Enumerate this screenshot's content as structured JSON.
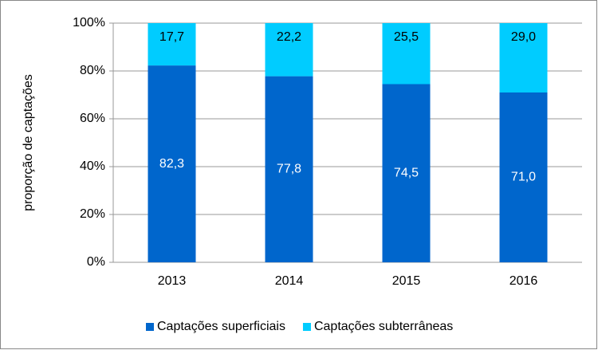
{
  "chart_data": {
    "type": "stacked_bar",
    "y_label": "proporção de captações",
    "categories": [
      "2013",
      "2014",
      "2015",
      "2016"
    ],
    "series": [
      {
        "name": "Captações superficiais",
        "color": "#0066cc",
        "values": [
          82.3,
          77.8,
          74.5,
          71.0
        ],
        "value_labels": [
          "82,3",
          "77,8",
          "74,5",
          "71,0"
        ],
        "label_color": "#ffffff"
      },
      {
        "name": "Captações subterrâneas",
        "color": "#00ccff",
        "values": [
          17.7,
          22.2,
          25.5,
          29.0
        ],
        "value_labels": [
          "17,7",
          "22,2",
          "25,5",
          "29,0"
        ],
        "label_color": "#000000"
      }
    ],
    "ylim": [
      0,
      100
    ],
    "yticks": [
      {
        "value": 0,
        "label": "0%"
      },
      {
        "value": 20,
        "label": "20%"
      },
      {
        "value": 40,
        "label": "40%"
      },
      {
        "value": 60,
        "label": "60%"
      },
      {
        "value": 80,
        "label": "80%"
      },
      {
        "value": 100,
        "label": "100%"
      }
    ],
    "grid": true,
    "legend": "bottom"
  }
}
